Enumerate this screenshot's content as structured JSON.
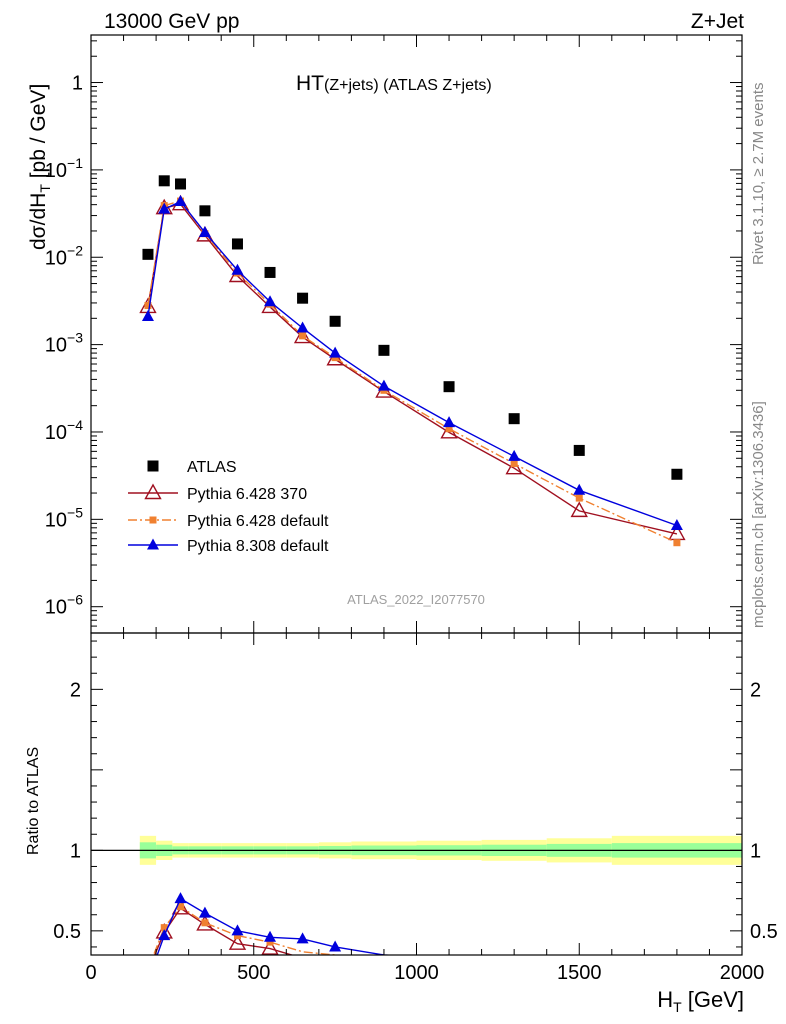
{
  "header": {
    "left": "13000 GeV pp",
    "right": "Z+Jet"
  },
  "side_text": {
    "rivet": "Rivet 3.1.10, ≥ 2.7M events",
    "mcplots": "mcplots.cern.ch [arXiv:1306.3436]"
  },
  "chart_data": [
    {
      "type": "scatter",
      "title_main": "HT",
      "title_sub": "(Z+jets) (ATLAS Z+jets)",
      "ylabel": "dσ/dH_T [pb / GeV]",
      "ylabel_parts": {
        "a": "dσ/dH",
        "sub": "T",
        "b": " [pb / GeV]"
      },
      "yscale": "log",
      "xlim": [
        0,
        2000
      ],
      "ylim": [
        5e-07,
        3.5
      ],
      "yticks": [
        {
          "v": 1,
          "base": "1",
          "exp": ""
        },
        {
          "v": 0.1,
          "base": "10",
          "exp": "−1"
        },
        {
          "v": 0.01,
          "base": "10",
          "exp": "−2"
        },
        {
          "v": 0.001,
          "base": "10",
          "exp": "−3"
        },
        {
          "v": 0.0001,
          "base": "10",
          "exp": "−4"
        },
        {
          "v": 1e-05,
          "base": "10",
          "exp": "−5"
        },
        {
          "v": 1e-06,
          "base": "10",
          "exp": "−6"
        }
      ],
      "watermark": "ATLAS_2022_I2077570",
      "legend_position": "lower-left",
      "series": [
        {
          "name": "ATLAS",
          "color": "#000000",
          "marker": "square",
          "x": [
            175,
            225,
            275,
            350,
            450,
            550,
            650,
            750,
            900,
            1100,
            1300,
            1500,
            1800
          ],
          "y": [
            0.0108,
            0.075,
            0.069,
            0.034,
            0.0142,
            0.0067,
            0.0034,
            0.00185,
            0.00086,
            0.00033,
            0.000142,
            6.15e-05,
            3.28e-05
          ]
        },
        {
          "name": "Pythia 6.428 370",
          "color": "#a01020",
          "marker": "open-triangle",
          "line": "solid",
          "x": [
            175,
            225,
            275,
            350,
            450,
            550,
            650,
            750,
            900,
            1100,
            1300,
            1500,
            1800
          ],
          "y": [
            0.0027,
            0.0365,
            0.0405,
            0.0178,
            0.0061,
            0.0027,
            0.00122,
            0.00068,
            0.00029,
            9.9e-05,
            3.85e-05,
            1.25e-05,
            6.8e-06
          ]
        },
        {
          "name": "Pythia 6.428 default",
          "color": "#f08030",
          "marker": "square-small",
          "line": "dashdot",
          "x": [
            175,
            225,
            275,
            350,
            450,
            550,
            650,
            750,
            900,
            1100,
            1300,
            1500,
            1800
          ],
          "y": [
            0.0028,
            0.039,
            0.044,
            0.0186,
            0.0066,
            0.0029,
            0.00126,
            0.00071,
            0.0003,
            0.000109,
            4.35e-05,
            1.75e-05,
            5.4e-06
          ]
        },
        {
          "name": "Pythia 8.308 default",
          "color": "#0000dd",
          "marker": "triangle",
          "line": "solid",
          "x": [
            175,
            225,
            275,
            350,
            450,
            550,
            650,
            750,
            900,
            1100,
            1300,
            1500,
            1800
          ],
          "y": [
            0.0021,
            0.0355,
            0.0435,
            0.0192,
            0.0071,
            0.0031,
            0.00155,
            0.0008,
            0.000335,
            0.000128,
            5.25e-05,
            2.15e-05,
            8.5e-06
          ]
        }
      ]
    },
    {
      "type": "line",
      "ylabel": "Ratio to ATLAS",
      "xlabel": "H_T [GeV]",
      "xlabel_parts": {
        "a": "H",
        "sub": "T",
        "b": " [GeV]"
      },
      "xlim": [
        0,
        2000
      ],
      "ylim": [
        0.35,
        2.35
      ],
      "xticks": [
        0,
        500,
        1000,
        1500,
        2000
      ],
      "xtick_labels": [
        "0",
        "500",
        "1000",
        "1500",
        "2000"
      ],
      "yticks": [
        0.5,
        1,
        2
      ],
      "ytick_labels": [
        "0.5",
        "1",
        "2"
      ],
      "bands": {
        "edges": [
          150,
          200,
          250,
          300,
          400,
          500,
          600,
          700,
          800,
          1000,
          1200,
          1400,
          1600,
          2000
        ],
        "yellow_half": [
          0.09,
          0.06,
          0.045,
          0.045,
          0.045,
          0.045,
          0.045,
          0.05,
          0.055,
          0.06,
          0.065,
          0.075,
          0.09
        ],
        "green_half": [
          0.05,
          0.035,
          0.025,
          0.025,
          0.025,
          0.025,
          0.025,
          0.027,
          0.03,
          0.032,
          0.035,
          0.04,
          0.045
        ],
        "yellow_color": "#ffff99",
        "green_color": "#99ff99"
      },
      "series": [
        {
          "name": "Pythia 6.428 370",
          "color": "#a01020",
          "marker": "open-triangle",
          "line": "solid",
          "x": [
            175,
            225,
            275,
            350,
            450,
            550,
            650,
            750
          ],
          "y": [
            0.25,
            0.49,
            0.64,
            0.54,
            0.42,
            0.39,
            0.33,
            0.3
          ]
        },
        {
          "name": "Pythia 6.428 default",
          "color": "#f08030",
          "marker": "square-small",
          "line": "dashdot",
          "x": [
            175,
            225,
            275,
            350,
            450,
            550,
            650,
            750,
            900
          ],
          "y": [
            0.26,
            0.52,
            0.65,
            0.55,
            0.47,
            0.43,
            0.37,
            0.35,
            0.32
          ]
        },
        {
          "name": "Pythia 8.308 default",
          "color": "#0000dd",
          "marker": "triangle",
          "line": "solid",
          "x": [
            175,
            225,
            275,
            350,
            450,
            550,
            650,
            750,
            900,
            1000
          ],
          "y": [
            0.19,
            0.47,
            0.7,
            0.61,
            0.5,
            0.46,
            0.45,
            0.4,
            0.35,
            0.34
          ]
        }
      ]
    }
  ]
}
